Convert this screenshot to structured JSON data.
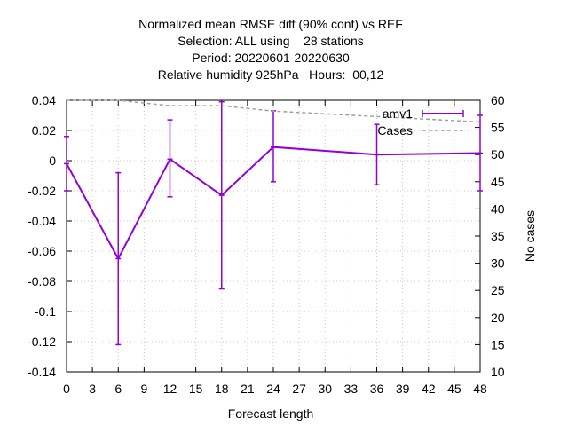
{
  "chart_data": {
    "type": "line",
    "title_lines": [
      "Normalized mean RMSE diff (90% conf) vs REF",
      "Selection: ALL using    28 stations",
      "Period: 20220601-20220630",
      "Relative humidity 925hPa   Hours:  00,12"
    ],
    "xlabel": "Forecast length",
    "ylabel": "",
    "y2label": "No cases",
    "xlim": [
      0,
      48
    ],
    "ylim": [
      -0.14,
      0.04
    ],
    "y2lim": [
      10,
      60
    ],
    "x_ticks": [
      0,
      3,
      6,
      9,
      12,
      15,
      18,
      21,
      24,
      27,
      30,
      33,
      36,
      39,
      42,
      45,
      48
    ],
    "y_ticks": [
      -0.14,
      -0.12,
      -0.1,
      -0.08,
      -0.06,
      -0.04,
      -0.02,
      0,
      0.02,
      0.04
    ],
    "y_tick_labels": [
      "-0.14",
      "-0.12",
      "-0.1",
      "-0.08",
      "-0.06",
      "-0.04",
      "-0.02",
      "0",
      "0.02",
      "0.04"
    ],
    "y2_ticks": [
      10,
      15,
      20,
      25,
      30,
      35,
      40,
      45,
      50,
      55,
      60
    ],
    "grid": true,
    "legend_position": "top-right",
    "series": [
      {
        "name": "amv1",
        "color": "#9400d3",
        "axis": "y",
        "x": [
          0,
          6,
          12,
          18,
          24,
          36,
          48
        ],
        "y": [
          -0.002,
          -0.065,
          0.001,
          -0.023,
          0.009,
          0.004,
          0.005
        ],
        "y_low": [
          -0.02,
          -0.122,
          -0.024,
          -0.085,
          -0.014,
          -0.016,
          -0.02
        ],
        "y_high": [
          0.016,
          -0.008,
          0.027,
          0.039,
          0.033,
          0.024,
          0.03
        ]
      },
      {
        "name": "Cases",
        "color": "#a0a0a0",
        "axis": "y2",
        "x": [
          0,
          6,
          12,
          18,
          24,
          36,
          48
        ],
        "y": [
          60,
          60,
          59,
          59,
          58,
          57,
          56
        ]
      }
    ]
  }
}
